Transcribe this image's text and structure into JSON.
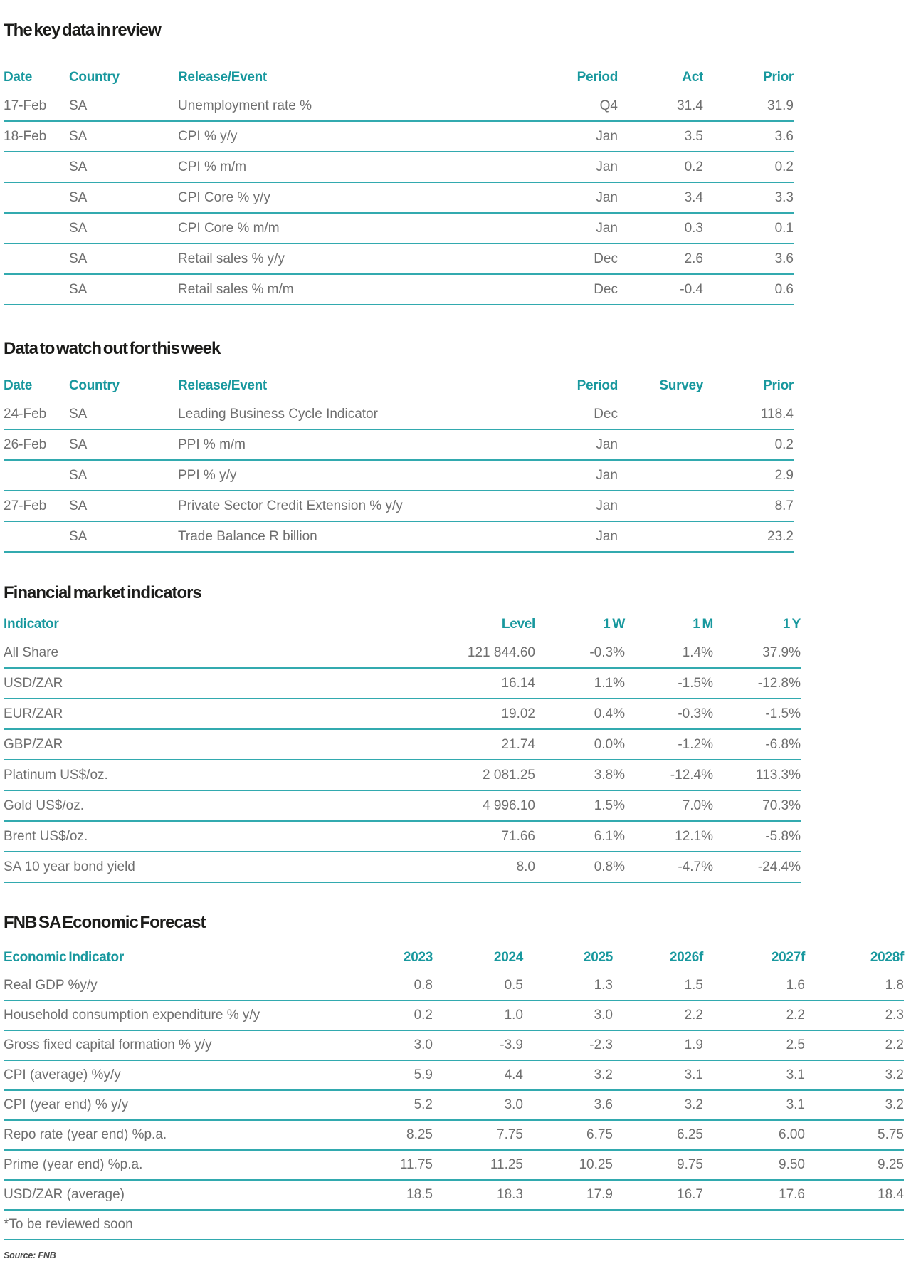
{
  "page": {
    "source_note": "Source: FNB",
    "accent_color": "#18989E",
    "line_color": "#32AAAF",
    "text_color": "#6F6F6F"
  },
  "sections": [
    {
      "id": "key-data-review",
      "title": "The key data in review",
      "table": {
        "headers": [
          "Date",
          "Country",
          "Release/Event",
          "Period",
          "Act",
          "Prior"
        ],
        "rows": [
          [
            "17-Feb",
            "SA",
            "Unemployment rate %",
            "Q4",
            "31.4",
            "31.9"
          ],
          [
            "18-Feb",
            "SA",
            "CPI % y/y",
            "Jan",
            "3.5",
            "3.6"
          ],
          [
            "",
            "SA",
            "CPI % m/m",
            "Jan",
            "0.2",
            "0.2"
          ],
          [
            "",
            "SA",
            "CPI Core % y/y",
            "Jan",
            "3.4",
            "3.3"
          ],
          [
            "",
            "SA",
            "CPI Core % m/m",
            "Jan",
            "0.3",
            "0.1"
          ],
          [
            "",
            "SA",
            "Retail sales % y/y",
            "Dec",
            "2.6",
            "3.6"
          ],
          [
            "",
            "SA",
            "Retail sales % m/m",
            "Dec",
            "-0.4",
            "0.6"
          ]
        ]
      }
    },
    {
      "id": "data-to-watch",
      "title": "Data to watch out for this week",
      "table": {
        "headers": [
          "Date",
          "Country",
          "Release/Event",
          "Period",
          "Survey",
          "Prior"
        ],
        "rows": [
          [
            "24-Feb",
            "SA",
            "Leading Business Cycle Indicator",
            "Dec",
            "",
            "118.4"
          ],
          [
            "26-Feb",
            "SA",
            "PPI % m/m",
            "Jan",
            "",
            "0.2"
          ],
          [
            "",
            "SA",
            "PPI % y/y",
            "Jan",
            "",
            "2.9"
          ],
          [
            "27-Feb",
            "SA",
            "Private Sector Credit Extension % y/y",
            "Jan",
            "",
            "8.7"
          ],
          [
            "",
            "SA",
            "Trade Balance R billion",
            "Jan",
            "",
            "23.2"
          ]
        ]
      }
    },
    {
      "id": "financial-market-indicators",
      "title": "Financial market indicators",
      "table": {
        "headers": [
          "Indicator",
          "Level",
          "1 W",
          "1 M",
          "1 Y"
        ],
        "rows": [
          [
            "All Share",
            "121 844.60",
            "-0.3%",
            "1.4%",
            "37.9%"
          ],
          [
            "USD/ZAR",
            "16.14",
            "1.1%",
            "-1.5%",
            "-12.8%"
          ],
          [
            "EUR/ZAR",
            "19.02",
            "0.4%",
            "-0.3%",
            "-1.5%"
          ],
          [
            "GBP/ZAR",
            "21.74",
            "0.0%",
            "-1.2%",
            "-6.8%"
          ],
          [
            "Platinum US$/oz.",
            "2 081.25",
            "3.8%",
            "-12.4%",
            "113.3%"
          ],
          [
            "Gold US$/oz.",
            "4 996.10",
            "1.5%",
            "7.0%",
            "70.3%"
          ],
          [
            "Brent US$/oz.",
            "71.66",
            "6.1%",
            "12.1%",
            "-5.8%"
          ],
          [
            "SA 10 year bond yield",
            "8.0",
            "0.8%",
            "-4.7%",
            "-24.4%"
          ]
        ]
      }
    },
    {
      "id": "fnb-sa-economic-forecast",
      "title": "FNB SA Economic Forecast",
      "table": {
        "headers": [
          "Economic Indicator",
          "2023",
          "2024",
          "2025",
          "2026f",
          "2027f",
          "2028f"
        ],
        "rows": [
          [
            "Real GDP %y/y",
            "0.8",
            "0.5",
            "1.3",
            "1.5",
            "1.6",
            "1.8"
          ],
          [
            "Household consumption expenditure % y/y",
            "0.2",
            "1.0",
            "3.0",
            "2.2",
            "2.2",
            "2.3"
          ],
          [
            "Gross fixed capital formation % y/y",
            "3.0",
            "-3.9",
            "-2.3",
            "1.9",
            "2.5",
            "2.2"
          ],
          [
            "CPI (average) %y/y",
            "5.9",
            "4.4",
            "3.2",
            "3.1",
            "3.1",
            "3.2"
          ],
          [
            "CPI (year end) % y/y",
            "5.2",
            "3.0",
            "3.6",
            "3.2",
            "3.1",
            "3.2"
          ],
          [
            "Repo rate (year end) %p.a.",
            "8.25",
            "7.75",
            "6.75",
            "6.25",
            "6.00",
            "5.75"
          ],
          [
            "Prime (year end) %p.a.",
            "11.75",
            "11.25",
            "10.25",
            "9.75",
            "9.50",
            "9.25"
          ],
          [
            "USD/ZAR (average)",
            "18.5",
            "18.3",
            "17.9",
            "16.7",
            "17.6",
            "18.4"
          ]
        ],
        "footnote": "*To be reviewed soon"
      }
    }
  ]
}
